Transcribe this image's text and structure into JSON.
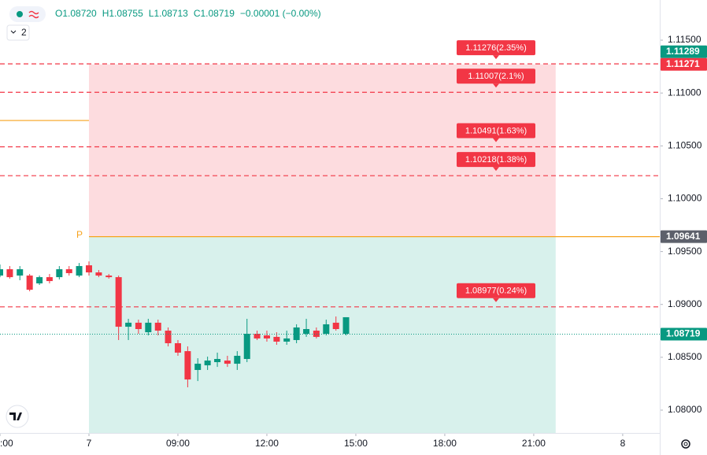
{
  "chart_data": {
    "type": "candlestick",
    "ohlc_legend": [
      "O1.08720",
      "H1.08755",
      "L1.08713",
      "C1.08719",
      "−0.00001 (−0.00%)"
    ],
    "indicator_count": "2",
    "x": [
      -3,
      -2.67,
      -2.33,
      -2,
      -1.67,
      -1.33,
      -1,
      -0.67,
      -0.33,
      0,
      0.33,
      0.67,
      1,
      1.33,
      1.67,
      2,
      2.33,
      2.67,
      3,
      3.33,
      3.67,
      4,
      4.33,
      4.67,
      5,
      5.33,
      5.67,
      6,
      6.33,
      6.67,
      7,
      7.33,
      7.67,
      8,
      8.33,
      8.67
    ],
    "open": [
      1.09273,
      1.09333,
      1.09273,
      1.09273,
      1.09199,
      1.09258,
      1.09258,
      1.09333,
      1.09273,
      1.0937,
      1.09303,
      1.09273,
      1.09258,
      1.08789,
      1.08827,
      1.08737,
      1.08827,
      1.08752,
      1.08633,
      1.08558,
      1.0838,
      1.08424,
      1.08454,
      1.08469,
      1.08439,
      1.08484,
      1.08722,
      1.08707,
      1.08693,
      1.08648,
      1.08663,
      1.08722,
      1.08752,
      1.08722,
      1.08827,
      1.08722
    ],
    "high": [
      1.09378,
      1.09363,
      1.09363,
      1.09288,
      1.09273,
      1.09288,
      1.09363,
      1.09363,
      1.09392,
      1.09407,
      1.09325,
      1.09288,
      1.09273,
      1.08864,
      1.08856,
      1.08864,
      1.08856,
      1.08782,
      1.08663,
      1.08603,
      1.08491,
      1.08506,
      1.08544,
      1.08514,
      1.08558,
      1.08864,
      1.08752,
      1.08752,
      1.08737,
      1.08752,
      1.08812,
      1.08864,
      1.08782,
      1.08856,
      1.08886,
      1.08879
    ],
    "low": [
      1.09258,
      1.09244,
      1.09229,
      1.09124,
      1.09184,
      1.09199,
      1.09236,
      1.09273,
      1.09258,
      1.09273,
      1.09258,
      1.09244,
      1.08663,
      1.08663,
      1.08722,
      1.08707,
      1.08707,
      1.08603,
      1.08514,
      1.08216,
      1.08275,
      1.0838,
      1.08409,
      1.08409,
      1.0838,
      1.08454,
      1.08663,
      1.08648,
      1.08618,
      1.08618,
      1.08633,
      1.08693,
      1.08678,
      1.08707,
      1.08752,
      1.08707
    ],
    "close": [
      1.09333,
      1.09258,
      1.09333,
      1.09139,
      1.09258,
      1.09221,
      1.09333,
      1.09296,
      1.09363,
      1.09303,
      1.09273,
      1.09258,
      1.08789,
      1.08827,
      1.08767,
      1.08827,
      1.08752,
      1.08633,
      1.08544,
      1.0829,
      1.08439,
      1.08469,
      1.08484,
      1.08439,
      1.08514,
      1.08722,
      1.08678,
      1.08678,
      1.08648,
      1.08678,
      1.08782,
      1.08767,
      1.08693,
      1.08812,
      1.08767,
      1.08879
    ],
    "up_color": "#089981",
    "down_color": "#f23645",
    "xlim": [
      -3,
      19.25
    ],
    "xticks": [
      {
        "value": -3,
        "label": ":00"
      },
      {
        "value": 0,
        "label": "7"
      },
      {
        "value": 3,
        "label": "09:00"
      },
      {
        "value": 6,
        "label": "12:00"
      },
      {
        "value": 9,
        "label": "15:00"
      },
      {
        "value": 12,
        "label": "18:00"
      },
      {
        "value": 15,
        "label": "21:00"
      },
      {
        "value": 18,
        "label": "8"
      }
    ],
    "ylim": [
      1.07784,
      1.1188
    ],
    "yticks": [
      {
        "value": 1.115,
        "label": "1.11500"
      },
      {
        "value": 1.11,
        "label": "1.11000"
      },
      {
        "value": 1.105,
        "label": "1.10500"
      },
      {
        "value": 1.1,
        "label": "1.10000"
      },
      {
        "value": 1.095,
        "label": "1.09500"
      },
      {
        "value": 1.09,
        "label": "1.09000"
      },
      {
        "value": 1.085,
        "label": "1.08500"
      },
      {
        "value": 1.08,
        "label": "1.08000"
      }
    ],
    "zones": [
      {
        "high": 1.11271,
        "low": 1.09641,
        "x0": 0,
        "x1": 15.74,
        "color": "#fddcdf"
      },
      {
        "high": 1.09641,
        "low": 1.07784,
        "x0": 0,
        "x1": 15.74,
        "color": "#d8f1ec"
      }
    ],
    "levels": {
      "values": [
        1.11276,
        1.11007,
        1.10491,
        1.10218,
        1.08977
      ],
      "value_labels": [
        "1.11276(2.35%)",
        "1.11007(2.1%)",
        "1.10491(1.63%)",
        "1.10218(1.38%)",
        "1.08977(0.24%)"
      ],
      "color": "#f23645"
    },
    "pivot_lines": [
      {
        "value": 1.1074,
        "x0": -3,
        "x1": 0
      },
      {
        "value": 1.09641,
        "x0": 0,
        "x1": 19.25
      }
    ],
    "pivot_color": "#f7a21b",
    "pivot_label": "P",
    "price_badges": [
      {
        "value": 1.11289,
        "color": "#089981"
      },
      {
        "value": 1.11271,
        "color": "#f23645"
      },
      {
        "value": 1.09641,
        "color": "#5d606b"
      },
      {
        "value": 1.08719,
        "color": "#089981"
      }
    ]
  }
}
